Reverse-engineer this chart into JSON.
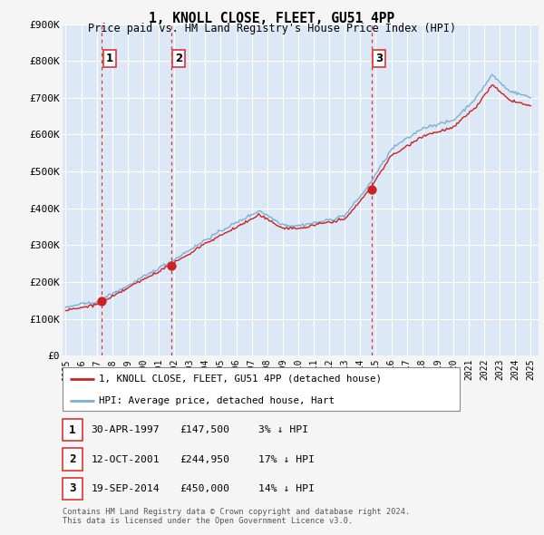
{
  "title": "1, KNOLL CLOSE, FLEET, GU51 4PP",
  "subtitle": "Price paid vs. HM Land Registry's House Price Index (HPI)",
  "background_color": "#f5f5f5",
  "plot_bg_color": "#dce8f5",
  "sale_dates": [
    1997.33,
    2001.79,
    2014.72
  ],
  "sale_prices": [
    147500,
    244950,
    450000
  ],
  "sale_labels": [
    "1",
    "2",
    "3"
  ],
  "legend_line1": "1, KNOLL CLOSE, FLEET, GU51 4PP (detached house)",
  "legend_line2": "HPI: Average price, detached house, Hart",
  "table_rows": [
    [
      "1",
      "30-APR-1997",
      "£147,500",
      "3% ↓ HPI"
    ],
    [
      "2",
      "12-OCT-2001",
      "£244,950",
      "17% ↓ HPI"
    ],
    [
      "3",
      "19-SEP-2014",
      "£450,000",
      "14% ↓ HPI"
    ]
  ],
  "footer": "Contains HM Land Registry data © Crown copyright and database right 2024.\nThis data is licensed under the Open Government Licence v3.0.",
  "hpi_line_color": "#7ab0d4",
  "price_line_color": "#cc2222",
  "sale_marker_color": "#cc2222",
  "vline_color": "#dd3333",
  "grid_color": "#ffffff",
  "ylim": [
    0,
    900000
  ],
  "xlim": [
    1994.8,
    2025.5
  ],
  "yticks": [
    0,
    100000,
    200000,
    300000,
    400000,
    500000,
    600000,
    700000,
    800000,
    900000
  ],
  "ytick_labels": [
    "£0",
    "£100K",
    "£200K",
    "£300K",
    "£400K",
    "£500K",
    "£600K",
    "£700K",
    "£800K",
    "£900K"
  ],
  "xtick_years": [
    1995,
    1996,
    1997,
    1998,
    1999,
    2000,
    2001,
    2002,
    2003,
    2004,
    2005,
    2006,
    2007,
    2008,
    2009,
    2010,
    2011,
    2012,
    2013,
    2014,
    2015,
    2016,
    2017,
    2018,
    2019,
    2020,
    2021,
    2022,
    2023,
    2024,
    2025
  ]
}
